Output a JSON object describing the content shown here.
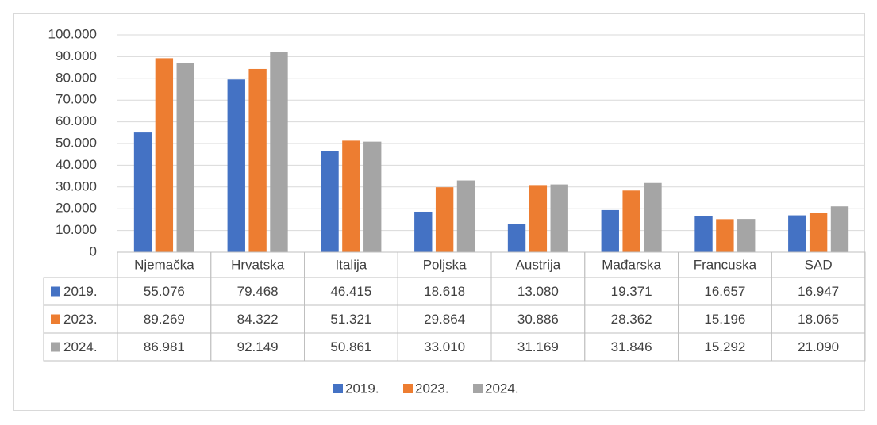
{
  "chart_data": {
    "type": "bar",
    "categories": [
      "Njemačka",
      "Hrvatska",
      "Italija",
      "Poljska",
      "Austrija",
      "Mađarska",
      "Francuska",
      "SAD"
    ],
    "series": [
      {
        "name": "2019.",
        "color": "#4472c4",
        "values": [
          55076,
          79468,
          46415,
          18618,
          13080,
          19371,
          16657,
          16947
        ],
        "value_labels": [
          "55.076",
          "79.468",
          "46.415",
          "18.618",
          "13.080",
          "19.371",
          "16.657",
          "16.947"
        ]
      },
      {
        "name": "2023.",
        "color": "#ed7d31",
        "values": [
          89269,
          84322,
          51321,
          29864,
          30886,
          28362,
          15196,
          18065
        ],
        "value_labels": [
          "89.269",
          "84.322",
          "51.321",
          "29.864",
          "30.886",
          "28.362",
          "15.196",
          "18.065"
        ]
      },
      {
        "name": "2024.",
        "color": "#a5a5a5",
        "values": [
          86981,
          92149,
          50861,
          33010,
          31169,
          31846,
          15292,
          21090
        ],
        "value_labels": [
          "86.981",
          "92.149",
          "50.861",
          "33.010",
          "31.169",
          "31.846",
          "15.292",
          "21.090"
        ]
      }
    ],
    "ylim": [
      0,
      100000
    ],
    "yticks": [
      0,
      {
        "value": 10000,
        "label": "10.000"
      },
      {
        "value": 20000,
        "label": "20.000"
      },
      {
        "value": 30000,
        "label": "30.000"
      },
      {
        "value": 40000,
        "label": "40.000"
      },
      {
        "value": 50000,
        "label": "50.000"
      },
      {
        "value": 60000,
        "label": "60.000"
      },
      {
        "value": 70000,
        "label": "70.000"
      },
      {
        "value": 80000,
        "label": "80.000"
      },
      {
        "value": 90000,
        "label": "90.000"
      },
      {
        "value": 100000,
        "label": "100.000"
      }
    ],
    "grid": true,
    "data_table": true,
    "legend": "bottom"
  }
}
